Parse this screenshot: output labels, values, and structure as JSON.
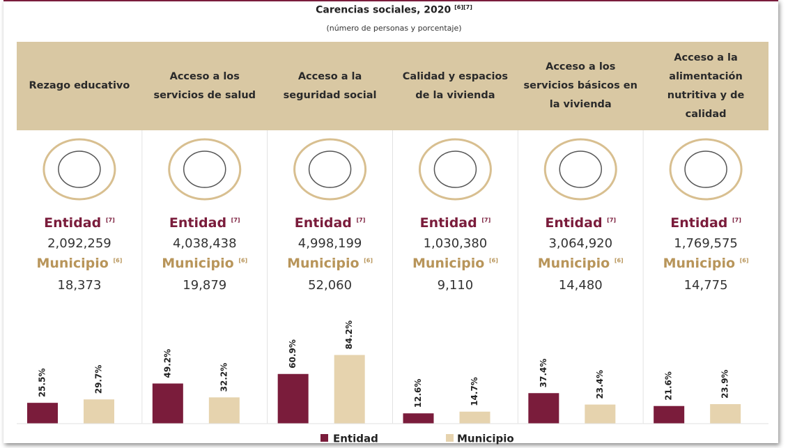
{
  "title": "Carencias sociales, 2020",
  "title_refs": "[6][7]",
  "subtitle": "(número de personas y porcentaje)",
  "legend": [
    {
      "name": "Entidad",
      "color": "#7a1c3b"
    },
    {
      "name": "Municipio",
      "color": "#e6d3ae"
    }
  ],
  "chart_data": [
    {
      "type": "bar",
      "title": "Rezago educativo",
      "entidad_label": "Entidad",
      "entidad_ref": "[7]",
      "entidad_count": "2,092,259",
      "municipio_label": "Municipio",
      "municipio_ref": "[6]",
      "municipio_count": "18,373",
      "values": [
        25.5,
        29.7
      ],
      "value_labels": [
        "25.5%",
        "29.7%"
      ]
    },
    {
      "type": "bar",
      "title": "Acceso a los servicios de salud",
      "entidad_label": "Entidad",
      "entidad_ref": "[7]",
      "entidad_count": "4,038,438",
      "municipio_label": "Municipio",
      "municipio_ref": "[6]",
      "municipio_count": "19,879",
      "values": [
        49.2,
        32.2
      ],
      "value_labels": [
        "49.2%",
        "32.2%"
      ]
    },
    {
      "type": "bar",
      "title": "Acceso a la seguridad social",
      "entidad_label": "Entidad",
      "entidad_ref": "[7]",
      "entidad_count": "4,998,199",
      "municipio_label": "Municipio",
      "municipio_ref": "[6]",
      "municipio_count": "52,060",
      "values": [
        60.9,
        84.2
      ],
      "value_labels": [
        "60.9%",
        "84.2%"
      ]
    },
    {
      "type": "bar",
      "title": "Calidad y espacios de la vivienda",
      "entidad_label": "Entidad",
      "entidad_ref": "[7]",
      "entidad_count": "1,030,380",
      "municipio_label": "Municipio",
      "municipio_ref": "[6]",
      "municipio_count": "9,110",
      "values": [
        12.6,
        14.7
      ],
      "value_labels": [
        "12.6%",
        "14.7%"
      ]
    },
    {
      "type": "bar",
      "title": "Acceso a los servicios básicos en la vivienda",
      "entidad_label": "Entidad",
      "entidad_ref": "[7]",
      "entidad_count": "3,064,920",
      "municipio_label": "Municipio",
      "municipio_ref": "[6]",
      "municipio_count": "14,480",
      "values": [
        37.4,
        23.4
      ],
      "value_labels": [
        "37.4%",
        "23.4%"
      ]
    },
    {
      "type": "bar",
      "title": "Acceso a la alimentación nutritiva y de calidad",
      "entidad_label": "Entidad",
      "entidad_ref": "[7]",
      "entidad_count": "1,769,575",
      "municipio_label": "Municipio",
      "municipio_ref": "[6]",
      "municipio_count": "14,775",
      "values": [
        21.6,
        23.9
      ],
      "value_labels": [
        "21.6%",
        "23.9%"
      ]
    }
  ]
}
